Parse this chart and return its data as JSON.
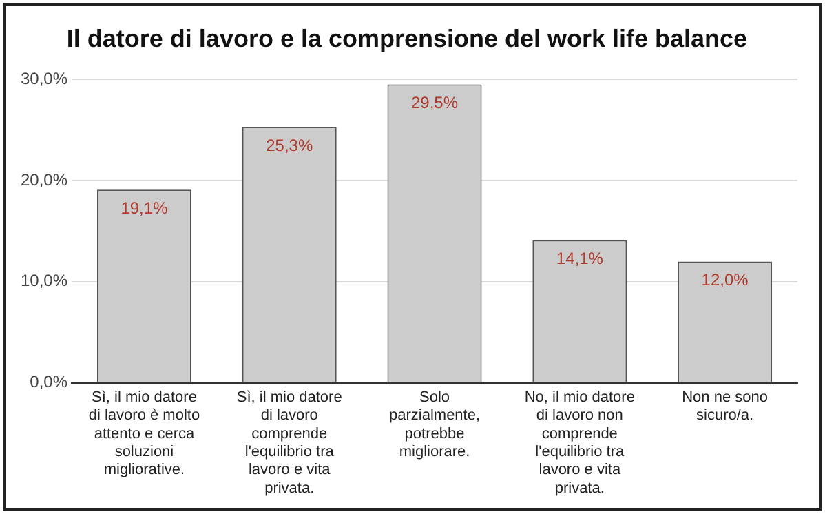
{
  "chart_data": {
    "type": "bar",
    "title": "Il datore di lavoro e la comprensione del work life balance",
    "categories": [
      "Sì, il mio datore di lavoro è molto attento e cerca soluzioni migliorative.",
      "Sì, il mio datore di lavoro comprende l'equilibrio tra lavoro e vita privata.",
      "Solo parzialmente, potrebbe migliorare.",
      "No, il mio datore di lavoro non comprende l'equilibrio tra lavoro e vita privata.",
      "Non ne sono sicuro/a."
    ],
    "values": [
      19.1,
      25.3,
      29.5,
      14.1,
      12.0
    ],
    "value_labels": [
      "19,1%",
      "25,3%",
      "29,5%",
      "14,1%",
      "12,0%"
    ],
    "color": "#cccccc",
    "ylim": [
      0,
      30
    ],
    "yticks": [
      {
        "value": 0,
        "label": "0,0%"
      },
      {
        "value": 10,
        "label": "10,0%"
      },
      {
        "value": 20,
        "label": "20,0%"
      },
      {
        "value": 30,
        "label": "30,0%"
      }
    ],
    "grid": "y",
    "legend": false
  }
}
